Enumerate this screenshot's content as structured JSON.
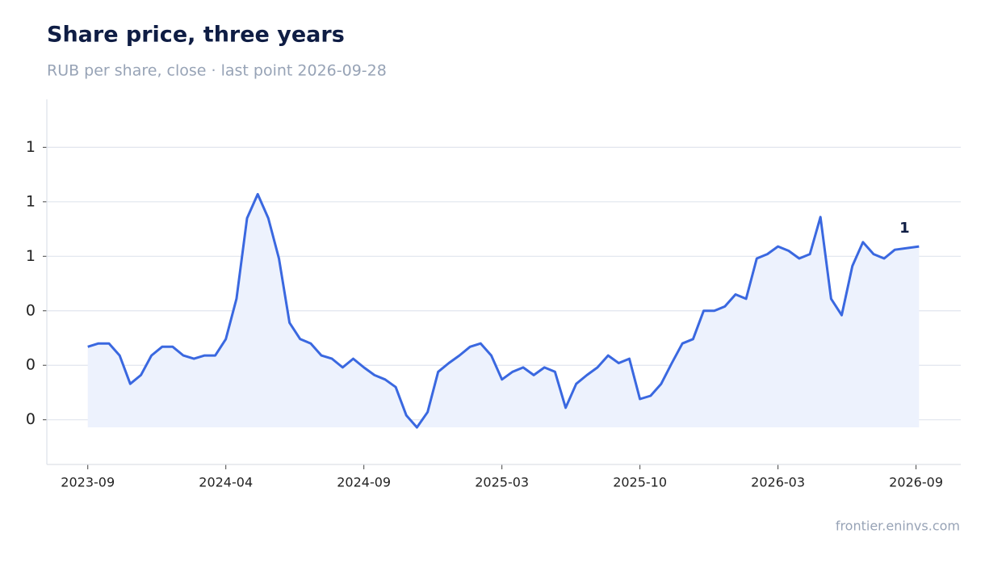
{
  "chart_data": {
    "type": "area",
    "title": "Share price, three years",
    "subtitle": "RUB per share, close · last point 2026-09-28",
    "source": "frontier.eninvs.com",
    "color": "#3a68e0",
    "fill": "#edf2fd",
    "grid": true,
    "x": [
      "2023-09-28",
      "2023-10-12",
      "2023-10-26",
      "2023-11-09",
      "2023-11-23",
      "2023-12-07",
      "2023-12-21",
      "2024-01-04",
      "2024-01-18",
      "2024-02-01",
      "2024-02-15",
      "2024-02-29",
      "2024-03-14",
      "2024-03-28",
      "2024-04-11",
      "2024-04-25",
      "2024-05-09",
      "2024-05-23",
      "2024-06-06",
      "2024-06-20",
      "2024-07-04",
      "2024-07-18",
      "2024-08-01",
      "2024-08-15",
      "2024-08-29",
      "2024-09-12",
      "2024-09-26",
      "2024-10-10",
      "2024-10-24",
      "2024-11-07",
      "2024-11-21",
      "2024-12-05",
      "2024-12-19",
      "2025-01-02",
      "2025-01-16",
      "2025-01-30",
      "2025-02-13",
      "2025-02-27",
      "2025-03-13",
      "2025-03-27",
      "2025-04-10",
      "2025-04-24",
      "2025-05-08",
      "2025-05-22",
      "2025-06-05",
      "2025-06-19",
      "2025-07-03",
      "2025-07-17",
      "2025-07-31",
      "2025-08-14",
      "2025-08-28",
      "2025-09-11",
      "2025-09-25",
      "2025-10-09",
      "2025-10-23",
      "2025-11-06",
      "2025-11-20",
      "2025-12-04",
      "2025-12-18",
      "2026-01-01",
      "2026-01-15",
      "2026-01-29",
      "2026-02-12",
      "2026-02-26",
      "2026-03-12",
      "2026-03-26",
      "2026-04-09",
      "2026-04-23",
      "2026-05-07",
      "2026-05-21",
      "2026-06-04",
      "2026-06-18",
      "2026-07-02",
      "2026-07-16",
      "2026-07-30",
      "2026-08-13",
      "2026-08-27",
      "2026-09-28"
    ],
    "values": [
      0.467,
      0.47,
      0.47,
      0.459,
      0.433,
      0.441,
      0.459,
      0.467,
      0.467,
      0.459,
      0.456,
      0.459,
      0.459,
      0.474,
      0.511,
      0.585,
      0.607,
      0.585,
      0.548,
      0.489,
      0.474,
      0.47,
      0.459,
      0.456,
      0.448,
      0.456,
      0.448,
      0.441,
      0.437,
      0.43,
      0.404,
      0.393,
      0.407,
      0.444,
      0.452,
      0.459,
      0.467,
      0.47,
      0.459,
      0.437,
      0.444,
      0.448,
      0.441,
      0.448,
      0.444,
      0.411,
      0.433,
      0.441,
      0.448,
      0.459,
      0.452,
      0.456,
      0.419,
      0.422,
      0.433,
      0.452,
      0.47,
      0.474,
      0.5,
      0.5,
      0.504,
      0.515,
      0.511,
      0.548,
      0.552,
      0.559,
      0.555,
      0.548,
      0.552,
      0.586,
      0.511,
      0.496,
      0.541,
      0.563,
      0.552,
      0.548,
      0.556,
      0.559
    ],
    "last_value_label": "1",
    "xlim": [
      "2023-08-05",
      "2026-11-22"
    ],
    "xticks": [
      {
        "value": "2023-09-28",
        "label": "2023-09"
      },
      {
        "value": "2024-03-28",
        "label": "2024-04"
      },
      {
        "value": "2024-09-26",
        "label": "2024-09"
      },
      {
        "value": "2025-03-27",
        "label": "2025-03"
      },
      {
        "value": "2025-09-25",
        "label": "2025-10"
      },
      {
        "value": "2026-03-26",
        "label": "2026-03"
      },
      {
        "value": "2026-09-24",
        "label": "2026-09"
      }
    ],
    "ylim": [
      0.359,
      0.694
    ],
    "yticks": [
      {
        "value": 0.4,
        "label": "0"
      },
      {
        "value": 0.45,
        "label": "0"
      },
      {
        "value": 0.5,
        "label": "0"
      },
      {
        "value": 0.55,
        "label": "1"
      },
      {
        "value": 0.6,
        "label": "1"
      },
      {
        "value": 0.65,
        "label": "1"
      }
    ]
  }
}
